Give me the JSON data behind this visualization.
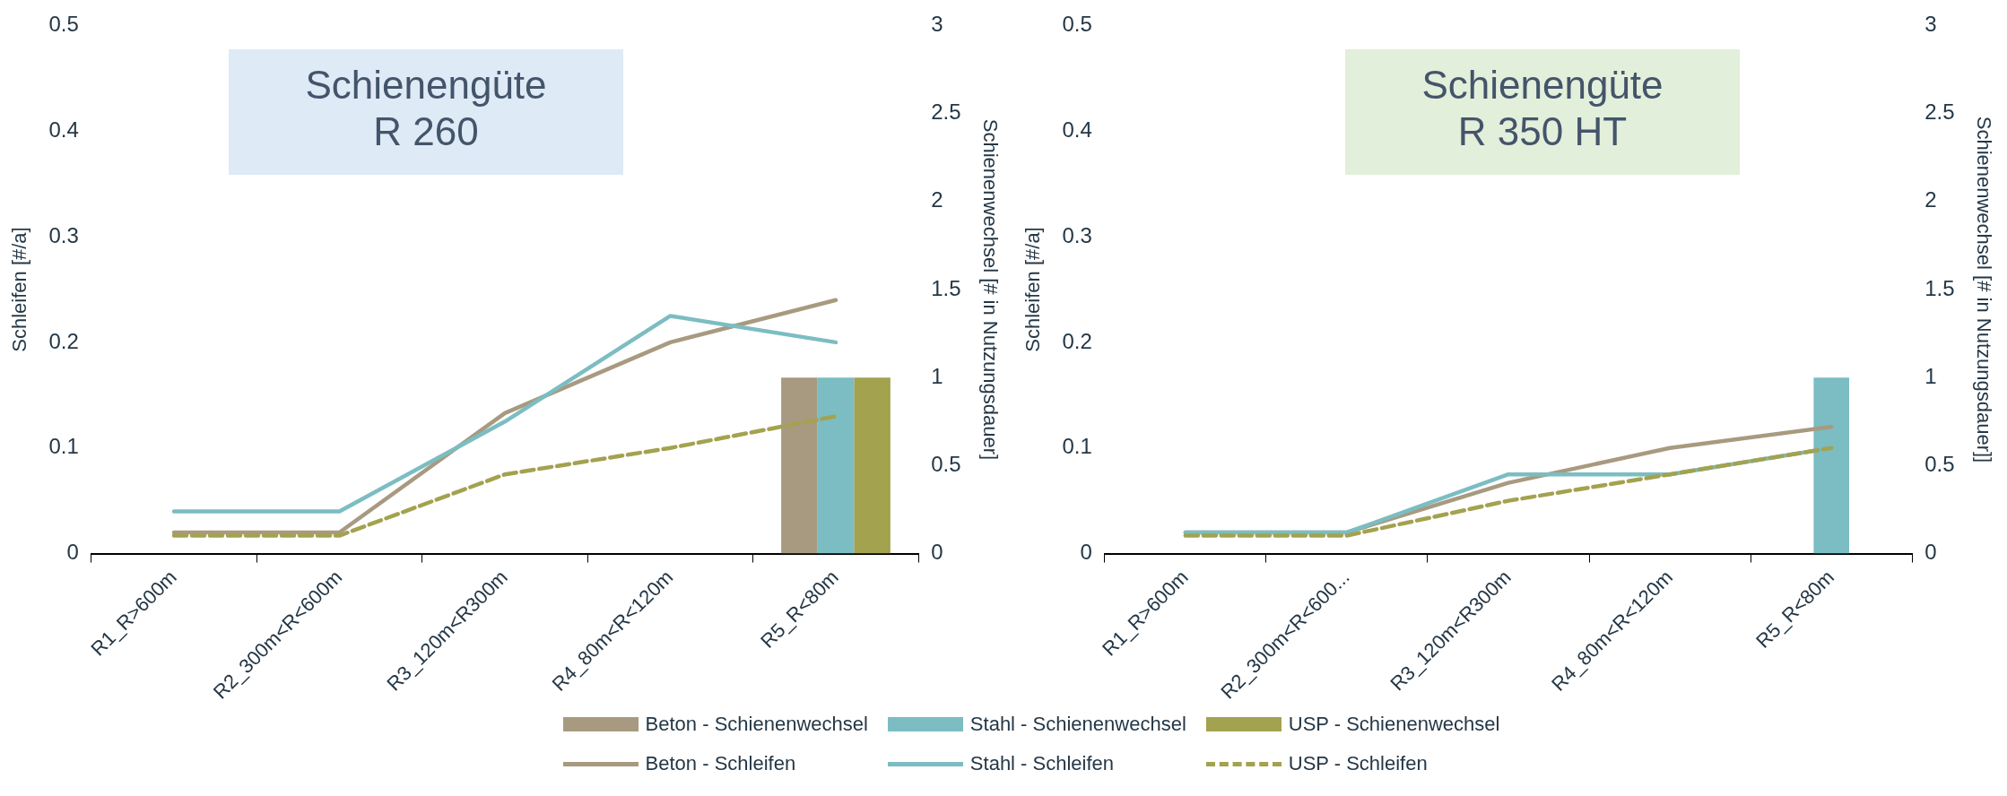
{
  "chart_data": [
    {
      "type": "line",
      "title": "Schienengüte R 260",
      "ylabel": "Schleifen [#/a]",
      "y2label": "Schienenwechsel [# in Nutzungsdauer]",
      "categories": [
        "R1_R>600m",
        "R2_300m<R<600m",
        "R3_120m<R300m",
        "R4_80m<R<120m",
        "R5_R<80m"
      ],
      "ylim": [
        0,
        0.5
      ],
      "yticks": [
        0,
        0.1,
        0.2,
        0.3,
        0.4,
        0.5
      ],
      "y2lim": [
        0,
        3
      ],
      "y2ticks": [
        0,
        0.5,
        1,
        1.5,
        2,
        2.5,
        3
      ],
      "grid": false,
      "legend": "bottom",
      "series": [
        {
          "name": "Beton - Schienenwechsel",
          "type": "bar",
          "axis": "y2",
          "color": "#a89a80",
          "values": [
            null,
            null,
            null,
            null,
            1
          ]
        },
        {
          "name": "Stahl - Schienenwechsel",
          "type": "bar",
          "axis": "y2",
          "color": "#7bbdc2",
          "values": [
            null,
            null,
            null,
            null,
            1
          ]
        },
        {
          "name": "USP - Schienenwechsel",
          "type": "bar",
          "axis": "y2",
          "color": "#a3a24f",
          "values": [
            null,
            null,
            null,
            null,
            1
          ]
        },
        {
          "name": "Beton - Schleifen",
          "color": "#a89a80",
          "line_style": "solid",
          "values": [
            0.02,
            0.02,
            0.133,
            0.2,
            0.24
          ]
        },
        {
          "name": "Stahl - Schleifen",
          "color": "#7bbdc2",
          "line_style": "solid",
          "values": [
            0.04,
            0.04,
            0.125,
            0.225,
            0.2
          ]
        },
        {
          "name": "USP - Schleifen",
          "color": "#a3a24f",
          "line_style": "dashed",
          "values": [
            0.017,
            0.017,
            0.075,
            0.1,
            0.13
          ]
        }
      ]
    },
    {
      "type": "line",
      "title": "Schienengüte R 350 HT",
      "ylabel": "Schleifen [#/a]",
      "y2label": "Schienenwechsel [# in Nutzungsdauer]]",
      "categories": [
        "R1_R>600m",
        "R2_300m<R<600...",
        "R3_120m<R300m",
        "R4_80m<R<120m",
        "R5_R<80m"
      ],
      "ylim": [
        0,
        0.5
      ],
      "yticks": [
        0,
        0.1,
        0.2,
        0.3,
        0.4,
        0.5
      ],
      "y2lim": [
        0,
        3
      ],
      "y2ticks": [
        0,
        0.5,
        1,
        1.5,
        2,
        2.5,
        3
      ],
      "grid": false,
      "series": [
        {
          "type": "bar",
          "axis": "y2",
          "color": "#a89a80",
          "values": [
            null,
            null,
            null,
            null,
            null
          ]
        },
        {
          "type": "bar",
          "axis": "y2",
          "color": "#7bbdc2",
          "values": [
            null,
            null,
            null,
            null,
            1
          ]
        },
        {
          "type": "bar",
          "axis": "y2",
          "color": "#a3a24f",
          "values": [
            null,
            null,
            null,
            null,
            null
          ]
        },
        {
          "color": "#a89a80",
          "line_style": "solid",
          "values": [
            0.02,
            0.02,
            0.067,
            0.1,
            0.12
          ]
        },
        {
          "color": "#7bbdc2",
          "line_style": "solid",
          "values": [
            0.02,
            0.02,
            0.075,
            0.075,
            0.1
          ]
        },
        {
          "color": "#a3a24f",
          "line_style": "dashed",
          "values": [
            0.017,
            0.017,
            0.05,
            0.075,
            0.1
          ]
        }
      ]
    }
  ]
}
